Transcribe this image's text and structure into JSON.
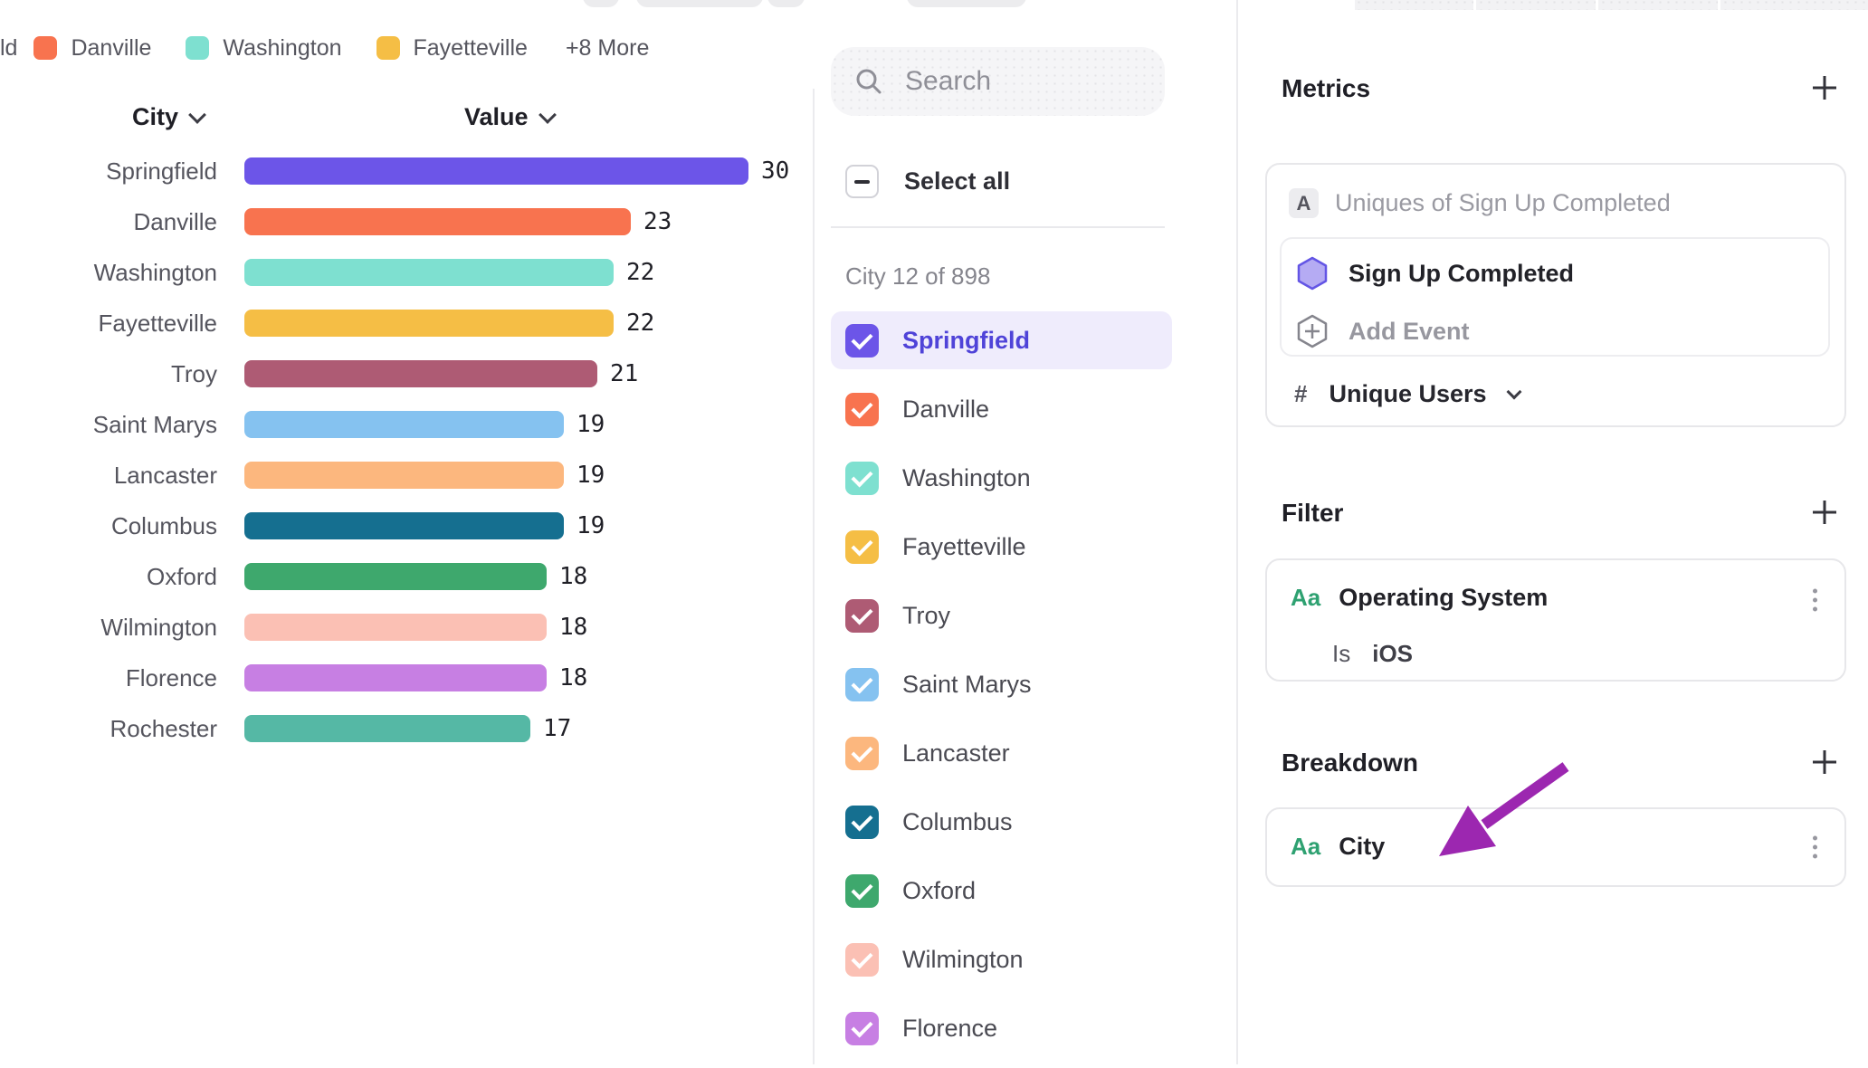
{
  "legend": {
    "clipped_label": "ld",
    "items": [
      {
        "label": "Danville",
        "color": "#F8734F"
      },
      {
        "label": "Washington",
        "color": "#7EE0D0"
      },
      {
        "label": "Fayetteville",
        "color": "#F5BE45"
      }
    ],
    "more_label": "+8 More"
  },
  "chart_data": {
    "type": "bar",
    "orientation": "horizontal",
    "title": "",
    "col_city": "City",
    "col_value": "Value",
    "categories": [
      "Springfield",
      "Danville",
      "Washington",
      "Fayetteville",
      "Troy",
      "Saint Marys",
      "Lancaster",
      "Columbus",
      "Oxford",
      "Wilmington",
      "Florence",
      "Rochester"
    ],
    "values": [
      30,
      23,
      22,
      22,
      21,
      19,
      19,
      19,
      18,
      18,
      18,
      17
    ],
    "colors": [
      "#6C55E8",
      "#F8734F",
      "#7EE0D0",
      "#F5BE45",
      "#AE5B74",
      "#85C2F0",
      "#FCB77E",
      "#156F90",
      "#3EA86D",
      "#FBC0B4",
      "#C77FE3",
      "#55B8A5"
    ],
    "xlim": [
      0,
      30
    ],
    "value_labels_shown": true,
    "grid": false,
    "legend_position": "top"
  },
  "selector": {
    "search_placeholder": "Search",
    "select_all_label": "Select all",
    "count_label": "City 12 of 898",
    "items": [
      {
        "label": "Springfield",
        "color": "#6C55E8",
        "highlighted": true,
        "checked": true
      },
      {
        "label": "Danville",
        "color": "#F8734F",
        "checked": true
      },
      {
        "label": "Washington",
        "color": "#7EE0D0",
        "checked": true
      },
      {
        "label": "Fayetteville",
        "color": "#F5BE45",
        "checked": true
      },
      {
        "label": "Troy",
        "color": "#AE5B74",
        "checked": true
      },
      {
        "label": "Saint Marys",
        "color": "#85C2F0",
        "checked": true
      },
      {
        "label": "Lancaster",
        "color": "#FCB77E",
        "checked": true
      },
      {
        "label": "Columbus",
        "color": "#156F90",
        "checked": true
      },
      {
        "label": "Oxford",
        "color": "#3EA86D",
        "checked": true
      },
      {
        "label": "Wilmington",
        "color": "#FBC0B4",
        "checked": true
      },
      {
        "label": "Florence",
        "color": "#C77FE3",
        "checked": true
      }
    ]
  },
  "inspector": {
    "metrics": {
      "title": "Metrics",
      "badge": "A",
      "metric_label": "Uniques of Sign Up Completed",
      "event_name": "Sign Up Completed",
      "add_event_label": "Add Event",
      "measure_hash": "#",
      "measure_label": "Unique Users"
    },
    "filter": {
      "title": "Filter",
      "type_icon": "Aa",
      "property": "Operating System",
      "operator": "Is",
      "value": "iOS"
    },
    "breakdown": {
      "title": "Breakdown",
      "type_icon": "Aa",
      "property": "City"
    }
  },
  "colors": {
    "accent_purple": "#6C55E8",
    "highlight_bg": "#EFECFC",
    "annotation_arrow": "#9C27B0",
    "type_icon_green": "#2EA171"
  }
}
